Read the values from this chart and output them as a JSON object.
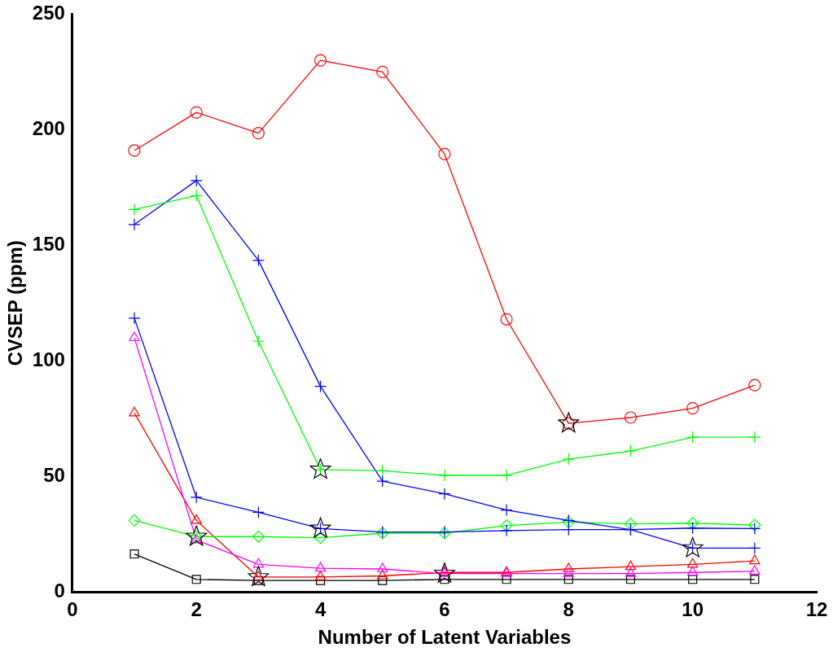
{
  "chart_data": {
    "type": "line",
    "xlabel": "Number of Latent Variables",
    "ylabel": "CVSEP (ppm)",
    "xlim": [
      0,
      12
    ],
    "xticks": [
      0,
      2,
      4,
      6,
      8,
      10,
      12
    ],
    "ylim": [
      0,
      250
    ],
    "yticks": [
      0,
      50,
      100,
      150,
      200,
      250
    ],
    "grid": false,
    "legend": false,
    "line_style": "solid",
    "x": [
      1,
      2,
      3,
      4,
      5,
      6,
      7,
      8,
      9,
      10,
      11
    ],
    "series": [
      {
        "color": "#ff0000",
        "marker": "circle",
        "values": [
          191,
          207.5,
          198.5,
          230,
          225,
          189.5,
          118,
          73,
          75.5,
          79.5,
          89.5
        ]
      },
      {
        "color": "#00ff00",
        "marker": "cross",
        "values": [
          165.5,
          171.5,
          108.5,
          53,
          52.5,
          50.5,
          50.5,
          57.5,
          61,
          67,
          67
        ]
      },
      {
        "color": "#0000ff",
        "marker": "cross",
        "values": [
          159,
          178,
          143.5,
          89,
          48,
          42.5,
          35.5,
          31,
          27,
          19,
          19
        ]
      },
      {
        "color": "#0000ff",
        "marker": "cross",
        "values": [
          118.5,
          41,
          34.5,
          27.5,
          26,
          26,
          26.6,
          27,
          27,
          27.7,
          27.5
        ]
      },
      {
        "color": "#00ff00",
        "marker": "diamond",
        "values": [
          31,
          24,
          24,
          23.5,
          25.5,
          25.5,
          28.8,
          30.3,
          29.5,
          29.8,
          29
        ]
      },
      {
        "color": "#ff00ff",
        "marker": "triangle",
        "values": [
          110,
          22.5,
          12,
          10.3,
          10,
          8,
          8,
          8,
          8,
          8.5,
          9
        ]
      },
      {
        "color": "#ff0000",
        "marker": "triangle",
        "values": [
          77.5,
          31,
          6.5,
          6.5,
          7,
          8.5,
          8.5,
          10,
          11,
          12,
          13.5
        ]
      },
      {
        "color": "#000000",
        "marker": "square",
        "values": [
          16.5,
          5.5,
          5,
          5,
          5,
          5.5,
          5.5,
          5.5,
          5.5,
          5.5,
          5.5
        ]
      },
      {
        "type": "scatter",
        "color": "#000000",
        "marker": "star",
        "x": [
          2,
          3,
          4,
          4,
          6,
          8,
          10
        ],
        "values": [
          24,
          6.5,
          53,
          27.5,
          8,
          73,
          19
        ]
      }
    ]
  }
}
